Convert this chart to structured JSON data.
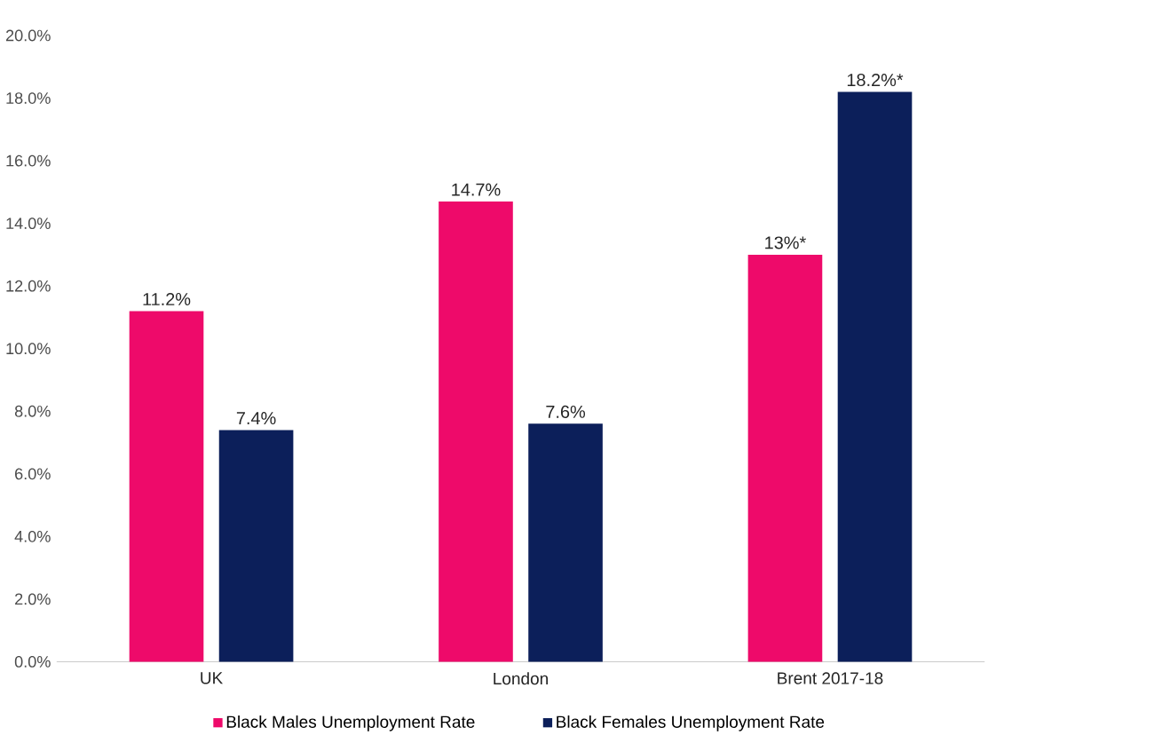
{
  "chart_data": {
    "type": "bar",
    "categories": [
      "UK",
      "London",
      "Brent 2017-18"
    ],
    "series": [
      {
        "name": "Black Males Unemployment Rate",
        "color": "#ee0a6a",
        "values": [
          11.2,
          14.7,
          13
        ],
        "value_labels": [
          "11.2%",
          "14.7%",
          "13%*"
        ]
      },
      {
        "name": "Black Females Unemployment Rate",
        "color": "#0c1f5a",
        "values": [
          7.4,
          7.6,
          18.2
        ],
        "value_labels": [
          "7.4%",
          "7.6%",
          "18.2%*"
        ]
      }
    ],
    "ylim": [
      0,
      20
    ],
    "yticks": [
      {
        "value": 0,
        "label": "0.0%"
      },
      {
        "value": 2,
        "label": "2.0%"
      },
      {
        "value": 4,
        "label": "4.0%"
      },
      {
        "value": 6,
        "label": "6.0%"
      },
      {
        "value": 8,
        "label": "8.0%"
      },
      {
        "value": 10,
        "label": "10.0%"
      },
      {
        "value": 12,
        "label": "12.0%"
      },
      {
        "value": 14,
        "label": "14.0%"
      },
      {
        "value": 16,
        "label": "16.0%"
      },
      {
        "value": 18,
        "label": "18.0%"
      },
      {
        "value": 20,
        "label": "20.0%"
      }
    ],
    "legend": "bottom"
  }
}
